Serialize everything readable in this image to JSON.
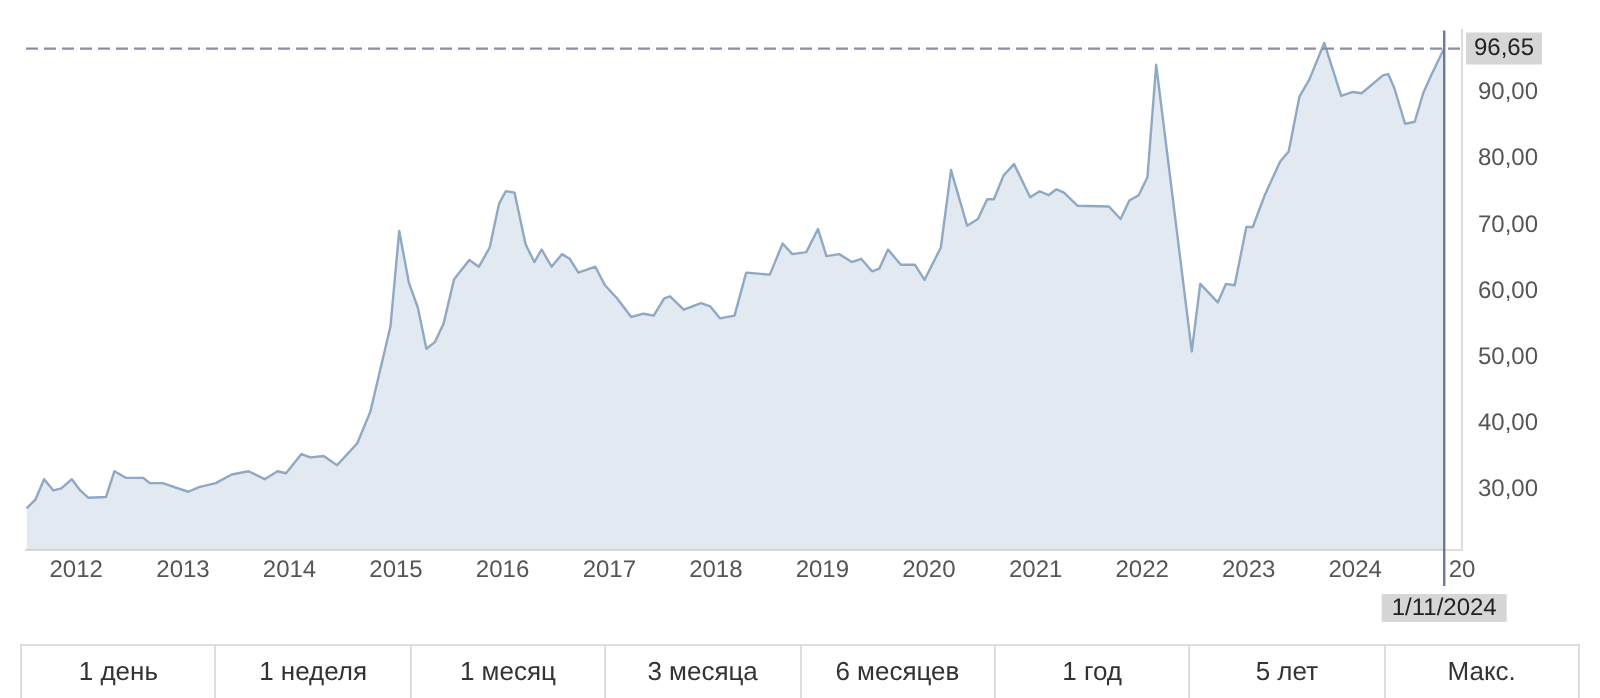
{
  "chart_data": {
    "type": "area",
    "x": [
      "2011-07-15",
      "2011-08-14",
      "2011-09-13",
      "2011-10-15",
      "2011-11-11",
      "2011-12-17",
      "2012-01-15",
      "2012-02-11",
      "2012-04-12",
      "2012-05-11",
      "2012-06-20",
      "2012-08-18",
      "2012-09-09",
      "2012-10-23",
      "2013-01-19",
      "2013-02-25",
      "2013-04-23",
      "2013-06-17",
      "2013-08-14",
      "2013-10-08",
      "2013-11-21",
      "2013-12-20",
      "2014-02-11",
      "2014-03-13",
      "2014-04-28",
      "2014-06-13",
      "2014-08-21",
      "2014-10-05",
      "2014-12-13",
      "2015-01-12",
      "2015-02-14",
      "2015-03-17",
      "2015-04-15",
      "2015-05-14",
      "2015-06-13",
      "2015-07-19",
      "2015-09-09",
      "2015-10-12",
      "2015-11-18",
      "2015-12-20",
      "2016-01-12",
      "2016-02-11",
      "2016-03-20",
      "2016-04-19",
      "2016-05-14",
      "2016-06-17",
      "2016-07-23",
      "2016-08-18",
      "2016-09-17",
      "2016-11-14",
      "2016-12-17",
      "2017-01-28",
      "2017-03-17",
      "2017-04-28",
      "2017-06-02",
      "2017-07-08",
      "2017-07-28",
      "2017-09-13",
      "2017-11-11",
      "2017-12-13",
      "2018-01-15",
      "2018-03-06",
      "2018-04-15",
      "2018-07-05",
      "2018-08-18",
      "2018-09-20",
      "2018-11-07",
      "2018-12-17",
      "2019-01-15",
      "2019-02-28",
      "2019-04-12",
      "2019-05-14",
      "2019-06-20",
      "2019-07-15",
      "2019-08-14",
      "2019-09-27",
      "2019-11-14",
      "2019-12-17",
      "2020-02-11",
      "2020-03-17",
      "2020-05-11",
      "2020-06-17",
      "2020-07-19",
      "2020-08-11",
      "2020-09-13",
      "2020-10-19",
      "2020-12-13",
      "2021-01-15",
      "2021-02-14",
      "2021-03-13",
      "2021-04-08",
      "2021-05-25",
      "2021-09-09",
      "2021-10-19",
      "2021-11-18",
      "2021-12-20",
      "2022-01-19",
      "2022-02-18",
      "2022-06-20",
      "2022-07-19",
      "2022-09-17",
      "2022-10-15",
      "2022-11-14",
      "2022-12-24",
      "2023-01-15",
      "2023-02-25",
      "2023-04-19",
      "2023-05-18",
      "2023-06-24",
      "2023-07-28",
      "2023-09-17",
      "2023-11-14",
      "2023-12-24",
      "2024-01-23",
      "2024-04-05",
      "2024-04-23",
      "2024-05-14",
      "2024-06-20",
      "2024-07-23",
      "2024-08-21",
      "2024-09-17",
      "2024-11-01"
    ],
    "series": [
      {
        "color": "#8fa9c4",
        "values": [
          27.2,
          28.5,
          31.6,
          29.9,
          30.2,
          31.6,
          29.9,
          28.8,
          28.9,
          32.8,
          31.8,
          31.8,
          31.0,
          31.0,
          29.7,
          30.4,
          31.0,
          32.3,
          32.8,
          31.6,
          32.8,
          32.5,
          35.4,
          34.9,
          35.1,
          33.7,
          37.0,
          41.8,
          54.7,
          69.1,
          61.3,
          57.5,
          51.3,
          52.3,
          55.1,
          61.8,
          64.7,
          63.7,
          66.6,
          73.2,
          75.1,
          74.9,
          67.1,
          64.4,
          66.3,
          63.7,
          65.6,
          64.9,
          62.8,
          63.7,
          60.9,
          58.9,
          56.1,
          56.6,
          56.3,
          58.9,
          59.2,
          57.2,
          58.2,
          57.7,
          55.9,
          56.3,
          62.8,
          62.5,
          67.2,
          65.6,
          65.9,
          69.4,
          65.3,
          65.6,
          64.4,
          64.9,
          63.0,
          63.4,
          66.3,
          64.0,
          64.0,
          61.7,
          66.6,
          78.3,
          69.9,
          70.9,
          73.9,
          73.9,
          77.5,
          79.2,
          74.2,
          75.1,
          74.5,
          75.4,
          74.9,
          72.9,
          72.8,
          70.9,
          73.7,
          74.5,
          77.2,
          94.2,
          50.9,
          61.1,
          58.3,
          61.1,
          60.9,
          69.7,
          69.7,
          74.5,
          79.6,
          81.1,
          89.4,
          92.0,
          97.5,
          89.5,
          90.1,
          89.9,
          92.6,
          92.8,
          90.7,
          85.3,
          85.6,
          89.9,
          92.6,
          96.7
        ]
      }
    ],
    "xlim": [
      "2011-07-13",
      "2025-01-01"
    ],
    "xticks": [
      "2012",
      "2013",
      "2014",
      "2015",
      "2016",
      "2017",
      "2018",
      "2019",
      "2020",
      "2021",
      "2022",
      "2023",
      "2024",
      {
        "value": "2025",
        "label": "20"
      }
    ],
    "ylim": [
      20.9,
      99.4
    ],
    "yticks": [
      {
        "value": 30,
        "label": "30,00"
      },
      {
        "value": 40,
        "label": "40,00"
      },
      {
        "value": 50,
        "label": "50,00"
      },
      {
        "value": 60,
        "label": "60,00"
      },
      {
        "value": 70,
        "label": "70,00"
      },
      {
        "value": 80,
        "label": "80,00"
      },
      {
        "value": 90,
        "label": "90,00"
      }
    ],
    "ref_lines": [
      {
        "axis": "y",
        "value": 96.65,
        "label": "96,65",
        "color": "#8a8fa8",
        "line_style": "dashed"
      },
      {
        "axis": "x",
        "value": "2024-11-01",
        "label": "1/11/2024",
        "color": "#6b7a99",
        "line_style": "solid"
      }
    ],
    "grid": false,
    "legend": false,
    "marker": "none",
    "line_style": "solid",
    "annotations": [
      "1 день",
      "1 неделя",
      "1 месяц",
      "3 месяца",
      "6 месяцев",
      "1 год",
      "5 лет",
      "Макс."
    ]
  }
}
